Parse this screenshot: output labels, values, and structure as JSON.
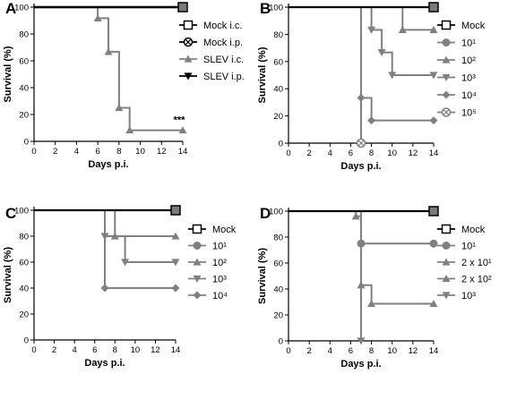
{
  "chart_data": [
    {
      "type": "line",
      "panel": "A",
      "xlabel": "Days p.i.",
      "ylabel": "Survival (%)",
      "xlim": [
        0,
        14
      ],
      "ylim": [
        0,
        100
      ],
      "x_ticks": [
        "0",
        "2",
        "4",
        "6",
        "8",
        "10",
        "12",
        "14"
      ],
      "y_ticks": [
        "0",
        "20",
        "40",
        "60",
        "80",
        "100"
      ],
      "legend_position": "right",
      "annotation": {
        "text": "***",
        "x": 14,
        "y": 8.3
      },
      "series": [
        {
          "name": "Mock i.c.",
          "color": "#000000",
          "marker": "square-open",
          "x": [
            0,
            14
          ],
          "y": [
            100,
            100
          ]
        },
        {
          "name": "Mock i.p.",
          "color": "#000000",
          "marker": "circle-cross",
          "x": [
            0,
            14
          ],
          "y": [
            100,
            100
          ]
        },
        {
          "name": "SLEV i.c.",
          "color": "#808080",
          "marker": "triangle-up",
          "x": [
            6,
            7,
            8,
            9,
            14
          ],
          "y": [
            91.7,
            66.7,
            25,
            8.3,
            8.3
          ]
        },
        {
          "name": "SLEV i.p.",
          "color": "#000000",
          "marker": "triangle-down",
          "x": [
            0,
            14
          ],
          "y": [
            100,
            100
          ]
        }
      ]
    },
    {
      "type": "line",
      "panel": "B",
      "xlabel": "Days p.i.",
      "ylabel": "Survival (%)",
      "xlim": [
        0,
        14
      ],
      "ylim": [
        0,
        100
      ],
      "x_ticks": [
        "0",
        "2",
        "4",
        "6",
        "8",
        "10",
        "12",
        "14"
      ],
      "y_ticks": [
        "0",
        "20",
        "40",
        "60",
        "80",
        "100"
      ],
      "legend_position": "right",
      "series": [
        {
          "name": "Mock",
          "color": "#000000",
          "marker": "square-open",
          "x": [
            0,
            14
          ],
          "y": [
            100,
            100
          ]
        },
        {
          "name": "10¹",
          "color": "#808080",
          "marker": "circle",
          "x": [
            0,
            14
          ],
          "y": [
            100,
            100
          ]
        },
        {
          "name": "10²",
          "color": "#808080",
          "marker": "triangle-up",
          "x": [
            11,
            14
          ],
          "y": [
            83.3,
            83.3
          ]
        },
        {
          "name": "10³",
          "color": "#808080",
          "marker": "triangle-down",
          "x": [
            8,
            9,
            10,
            14
          ],
          "y": [
            83.3,
            66.7,
            50,
            50
          ]
        },
        {
          "name": "10⁴",
          "color": "#808080",
          "marker": "diamond",
          "x": [
            7,
            8,
            14
          ],
          "y": [
            33.3,
            16.7,
            16.7
          ]
        },
        {
          "name": "10⁵",
          "color": "#808080",
          "marker": "circle-cross",
          "x": [
            7
          ],
          "y": [
            0
          ]
        }
      ]
    },
    {
      "type": "line",
      "panel": "C",
      "xlabel": "Days p.i.",
      "ylabel": "Survival (%)",
      "xlim": [
        0,
        14
      ],
      "ylim": [
        0,
        100
      ],
      "x_ticks": [
        "0",
        "2",
        "4",
        "6",
        "8",
        "10",
        "12",
        "14"
      ],
      "y_ticks": [
        "0",
        "20",
        "40",
        "60",
        "80",
        "100"
      ],
      "legend_position": "right",
      "series": [
        {
          "name": "Mock",
          "color": "#000000",
          "marker": "square-open",
          "x": [
            0,
            14
          ],
          "y": [
            100,
            100
          ]
        },
        {
          "name": "10¹",
          "color": "#808080",
          "marker": "circle",
          "x": [
            0,
            14
          ],
          "y": [
            100,
            100
          ]
        },
        {
          "name": "10²",
          "color": "#808080",
          "marker": "triangle-up",
          "x": [
            8,
            14
          ],
          "y": [
            80,
            80
          ]
        },
        {
          "name": "10³",
          "color": "#808080",
          "marker": "triangle-down",
          "x": [
            7,
            9,
            14
          ],
          "y": [
            80,
            60,
            60
          ]
        },
        {
          "name": "10⁴",
          "color": "#808080",
          "marker": "diamond",
          "x": [
            7,
            14
          ],
          "y": [
            40,
            40
          ]
        }
      ]
    },
    {
      "type": "line",
      "panel": "D",
      "xlabel": "Days p.i.",
      "ylabel": "Survival (%)",
      "xlim": [
        0,
        14
      ],
      "ylim": [
        0,
        100
      ],
      "x_ticks": [
        "0",
        "2",
        "4",
        "6",
        "8",
        "10",
        "12",
        "14"
      ],
      "y_ticks": [
        "0",
        "20",
        "40",
        "60",
        "80",
        "100"
      ],
      "legend_position": "right",
      "series": [
        {
          "name": "Mock",
          "color": "#000000",
          "marker": "square-open",
          "x": [
            0,
            14
          ],
          "y": [
            100,
            100
          ]
        },
        {
          "name": "10¹",
          "color": "#808080",
          "marker": "circle",
          "x": [
            7,
            14
          ],
          "y": [
            75,
            75
          ]
        },
        {
          "name": "2 x 10¹",
          "color": "#808080",
          "marker": "triangle-up",
          "x": [
            6.5,
            7,
            8,
            14
          ],
          "y": [
            96,
            42.9,
            28.6,
            28.6
          ]
        },
        {
          "name": "2 x 10²",
          "color": "#808080",
          "marker": "triangle-up",
          "x": [],
          "y": []
        },
        {
          "name": "10³",
          "color": "#808080",
          "marker": "triangle-down",
          "x": [
            7
          ],
          "y": [
            0
          ]
        }
      ]
    }
  ]
}
